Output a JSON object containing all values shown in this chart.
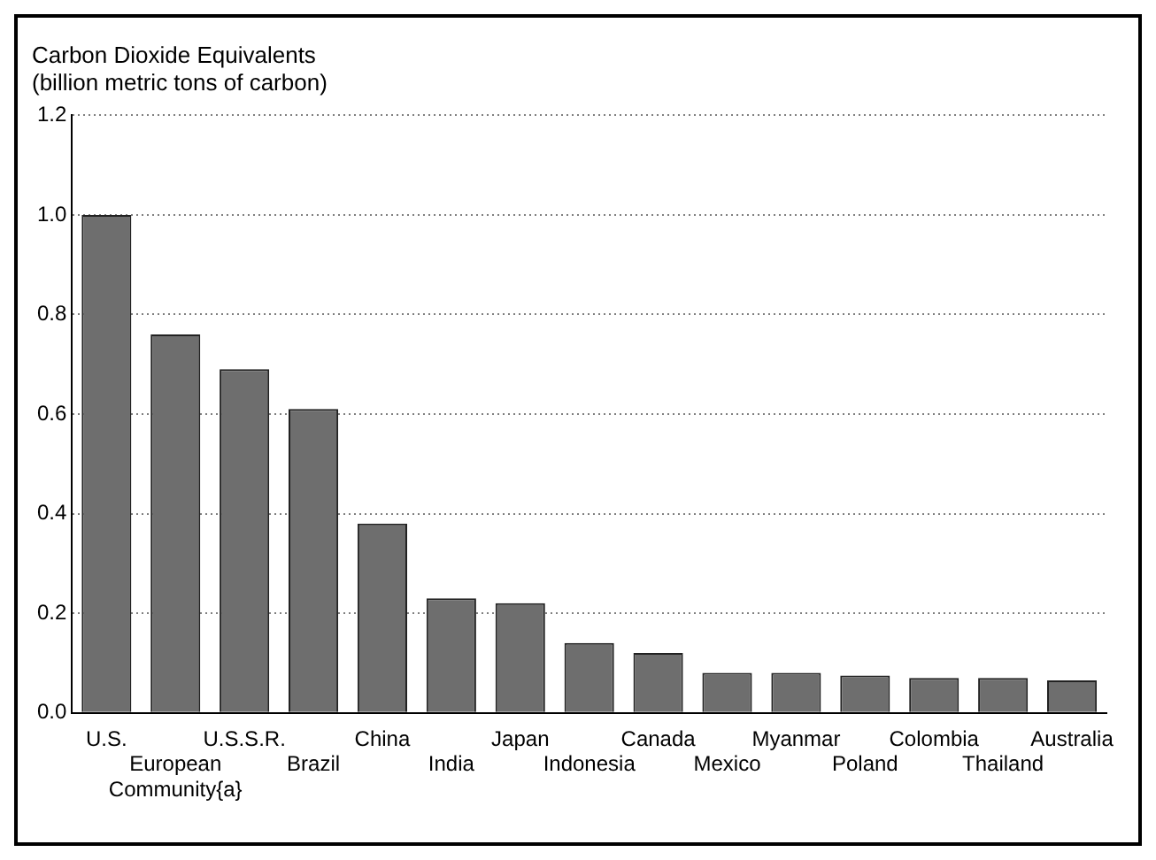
{
  "chart_data": {
    "type": "bar",
    "title": "Carbon Dioxide Equivalents",
    "subtitle": "(billion metric tons of carbon)",
    "categories": [
      "U.S.",
      "European Community{a}",
      "U.S.S.R.",
      "Brazil",
      "China",
      "India",
      "Japan",
      "Indonesia",
      "Canada",
      "Mexico",
      "Myanmar",
      "Poland",
      "Colombia",
      "Thailand",
      "Australia"
    ],
    "values": [
      1.0,
      0.76,
      0.69,
      0.61,
      0.38,
      0.23,
      0.22,
      0.14,
      0.12,
      0.08,
      0.08,
      0.075,
      0.07,
      0.07,
      0.065
    ],
    "color": "#6e6e6e",
    "ylim": [
      0,
      1.2
    ],
    "yticks": [
      {
        "value": 0,
        "label": "0.0"
      },
      0.2,
      0.4,
      0.6,
      0.8,
      {
        "value": 1,
        "label": "1.0"
      },
      1.2
    ],
    "grid": "y"
  }
}
